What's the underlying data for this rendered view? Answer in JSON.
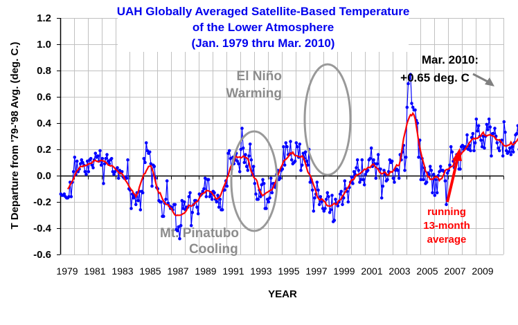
{
  "chart_data": {
    "type": "line",
    "title": [
      "UAH Globally Averaged Satellite-Based Temperature",
      "of the Lower Atmosphere",
      "(Jan. 1979  thru Mar. 2010)"
    ],
    "xlabel": "YEAR",
    "ylabel": "T Departure from '79-'98 Avg. (deg. C.)",
    "xlim": [
      1979,
      2011
    ],
    "ylim": [
      -0.6,
      1.2
    ],
    "grid": true,
    "x_ticks": [
      "1979",
      "1981",
      "1983",
      "1985",
      "1987",
      "1989",
      "1991",
      "1993",
      "1995",
      "1997",
      "1999",
      "2001",
      "2003",
      "2005",
      "2007",
      "2009"
    ],
    "y_ticks": [
      "1.2",
      "1.0",
      "0.8",
      "0.6",
      "0.4",
      "0.2",
      "0.0",
      "-0.2",
      "-0.4",
      "-0.6"
    ],
    "start": "1979-01",
    "series": [
      {
        "name": "Monthly anomaly",
        "color": "#0000ff",
        "marker": "circle",
        "values": [
          -0.14,
          -0.15,
          -0.15,
          -0.14,
          -0.16,
          -0.17,
          -0.17,
          -0.16,
          -0.05,
          -0.16,
          -0.05,
          0.03,
          0.14,
          0.01,
          0.11,
          0.03,
          0.05,
          0.09,
          0.12,
          0.1,
          0.08,
          0.03,
          0.01,
          0.11,
          0.03,
          0.12,
          0.13,
          0.08,
          0.06,
          0.12,
          0.17,
          0.14,
          0.15,
          0.11,
          0.19,
          0.08,
          0.13,
          -0.06,
          0.09,
          0.13,
          0.16,
          0.11,
          0.09,
          0.12,
          0.13,
          0.03,
          0.01,
          0.03,
          0.05,
          0.06,
          -0.02,
          0.04,
          0.02,
          0.03,
          -0.01,
          -0.02,
          -0.01,
          -0.02,
          0.12,
          -0.1,
          -0.11,
          -0.25,
          -0.14,
          -0.17,
          -0.15,
          -0.22,
          -0.13,
          -0.19,
          -0.12,
          -0.26,
          -0.12,
          -0.13,
          0.13,
          0.1,
          0.25,
          0.19,
          0.17,
          0.18,
          0.09,
          -0.08,
          0.08,
          0.07,
          -0.02,
          -0.09,
          -0.1,
          -0.19,
          -0.2,
          -0.2,
          -0.31,
          -0.31,
          -0.21,
          -0.18,
          -0.04,
          -0.21,
          -0.23,
          -0.25,
          -0.24,
          -0.26,
          -0.22,
          -0.22,
          -0.41,
          -0.42,
          -0.39,
          -0.48,
          -0.38,
          -0.19,
          -0.25,
          -0.2,
          -0.26,
          -0.24,
          -0.24,
          -0.16,
          -0.13,
          -0.38,
          -0.28,
          -0.22,
          -0.19,
          -0.19,
          -0.24,
          -0.29,
          -0.14,
          -0.15,
          -0.14,
          -0.12,
          -0.1,
          -0.02,
          -0.16,
          -0.03,
          -0.03,
          -0.16,
          -0.14,
          -0.18,
          -0.12,
          -0.13,
          -0.18,
          -0.2,
          -0.15,
          -0.24,
          -0.18,
          -0.26,
          -0.26,
          -0.11,
          -0.11,
          -0.04,
          -0.08,
          0.17,
          0.19,
          0.13,
          0.05,
          0.14,
          0.09,
          0.12,
          0.17,
          0.11,
          0.09,
          0.03,
          0.2,
          0.36,
          0.21,
          0.1,
          0.16,
          0.07,
          0.04,
          0.15,
          0.24,
          0.12,
          0.01,
          0.07,
          -0.06,
          -0.14,
          -0.18,
          -0.18,
          -0.11,
          -0.16,
          -0.07,
          -0.03,
          -0.06,
          -0.25,
          -0.25,
          -0.18,
          -0.2,
          -0.17,
          -0.02,
          -0.13,
          -0.06,
          -0.06,
          -0.09,
          0.01,
          0.04,
          -0.03,
          -0.02,
          0.04,
          0.05,
          0.22,
          0.08,
          0.25,
          0.22,
          0.16,
          0.16,
          0.26,
          0.12,
          0.09,
          0.1,
          0.11,
          0.25,
          0.22,
          0.14,
          0.24,
          0.04,
          0.08,
          0.17,
          0.13,
          0.18,
          0.11,
          0.08,
          0.2,
          -0.05,
          -0.03,
          -0.11,
          -0.27,
          -0.17,
          -0.14,
          -0.05,
          -0.11,
          -0.22,
          -0.16,
          -0.2,
          -0.25,
          -0.27,
          -0.25,
          -0.18,
          -0.13,
          -0.16,
          -0.28,
          -0.26,
          -0.15,
          -0.35,
          -0.34,
          -0.18,
          -0.21,
          -0.23,
          -0.2,
          -0.14,
          -0.12,
          -0.22,
          -0.17,
          -0.04,
          -0.1,
          -0.12,
          -0.2,
          -0.09,
          -0.05,
          -0.01,
          -0.06,
          0.03,
          0.01,
          0.06,
          0.12,
          0.04,
          -0.05,
          -0.03,
          0.12,
          -0.03,
          -0.07,
          0.01,
          0.03,
          0.04,
          0.12,
          0.13,
          0.21,
          0.07,
          0.12,
          0.09,
          -0.02,
          0.09,
          0.16,
          0.05,
          0.05,
          -0.17,
          -0.08,
          0.04,
          0.01,
          -0.04,
          -0.03,
          0.03,
          0.12,
          0.1,
          0.11,
          -0.02,
          -0.05,
          0.04,
          0.05,
          0.04,
          -0.02,
          0.16,
          0.12,
          0.18,
          0.23,
          0.04,
          0.14,
          0.52,
          0.7,
          0.74,
          0.77,
          0.55,
          0.52,
          0.5,
          0.5,
          0.42,
          0.4,
          0.14,
          0.27,
          -0.03,
          0.13,
          -0.03,
          0.06,
          -0.06,
          -0.05,
          0.02,
          0.01,
          0.07,
          0.04,
          -0.13,
          0.01,
          -0.15,
          -0.03,
          -0.13,
          0.0,
          0.03,
          0.07,
          0.04,
          0.04,
          0.03,
          -0.04,
          -0.22,
          0.02,
          0.04,
          0.08,
          0.22,
          0.18,
          0.11,
          0.06,
          0.09,
          0.16,
          0.15,
          0.05,
          0.05,
          0.22,
          0.23,
          0.2,
          0.22,
          0.21,
          0.31,
          0.2,
          0.23,
          0.19,
          0.29,
          0.32,
          0.19,
          0.25,
          0.43,
          0.34,
          0.38,
          0.3,
          0.27,
          0.22,
          0.3,
          0.21,
          0.3,
          0.39,
          0.35,
          0.43,
          0.37,
          0.15,
          0.32,
          0.32,
          0.36,
          0.3,
          0.25,
          0.21,
          0.19,
          0.26,
          0.27,
          0.15,
          0.41,
          0.33,
          0.19,
          0.17,
          0.18,
          0.21,
          0.16,
          0.22,
          0.18,
          0.25,
          0.31,
          0.32,
          0.38,
          0.2,
          0.28,
          0.34,
          0.29,
          0.28,
          0.41,
          0.27,
          0.13,
          0.25,
          0.26,
          0.06,
          0.5,
          0.31,
          0.29,
          0.29,
          0.31,
          0.27,
          0.22,
          0.29,
          0.2,
          0.33,
          0.27,
          0.04,
          -0.03,
          -0.13,
          -0.07,
          0.05,
          -0.13,
          -0.13,
          -0.08,
          0.03,
          0.14,
          0.02,
          0.17,
          0.0,
          0.25,
          0.2,
          0.03,
          0.06,
          0.04,
          0.18,
          0.41,
          0.24,
          0.5,
          0.36,
          0.5,
          0.29,
          0.62,
          0.66,
          0.65
        ]
      },
      {
        "name": "running 13-month average",
        "color": "#ff0000",
        "values_note": "computed from monthly series"
      }
    ]
  },
  "annotations": {
    "el_nino": [
      "El Niño",
      "Warming"
    ],
    "pinatubo": [
      "Mt. Pinatubo",
      "Cooling"
    ],
    "latest": [
      "Mar. 2010:",
      "+0.65 deg. C"
    ],
    "running_avg": [
      "running",
      "13-month",
      "average"
    ]
  }
}
